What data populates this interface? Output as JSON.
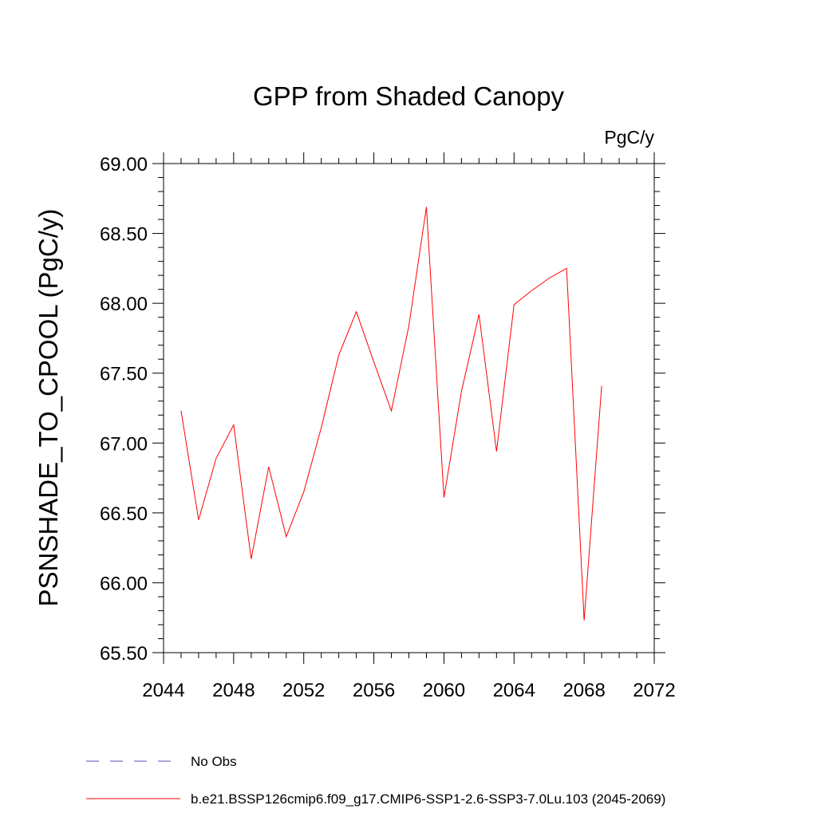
{
  "chart_data": {
    "type": "line",
    "title": "GPP from Shaded Canopy",
    "units": "PgC/y",
    "xlabel": "",
    "ylabel": "PSNSHADE_TO_CPOOL  (PgC/y)",
    "xlim": [
      2044,
      2072
    ],
    "ylim": [
      65.5,
      69.0
    ],
    "x_ticks": [
      "2044",
      "2048",
      "2052",
      "2056",
      "2060",
      "2064",
      "2068",
      "2072"
    ],
    "y_ticks": [
      "65.50",
      "66.00",
      "66.50",
      "67.00",
      "67.50",
      "68.00",
      "68.50",
      "69.00"
    ],
    "grid": false,
    "legend_position": "bottom",
    "series": [
      {
        "name": "b.e21.BSSP126cmip6.f09_g17.CMIP6-SSP1-2.6-SSP3-7.0Lu.103 (2045-2069)",
        "color": "#ff0000",
        "style": "solid",
        "x": [
          2045,
          2046,
          2047,
          2048,
          2049,
          2050,
          2051,
          2052,
          2053,
          2054,
          2055,
          2056,
          2057,
          2058,
          2059,
          2060,
          2061,
          2062,
          2063,
          2064,
          2065,
          2066,
          2067,
          2068,
          2069
        ],
        "y": [
          67.23,
          66.45,
          66.89,
          67.13,
          66.17,
          66.83,
          66.33,
          66.65,
          67.11,
          67.63,
          67.94,
          67.58,
          67.23,
          67.84,
          68.69,
          66.61,
          67.37,
          67.92,
          66.94,
          67.99,
          68.09,
          68.18,
          68.25,
          65.73,
          67.41
        ]
      }
    ],
    "legend": [
      {
        "label": "No Obs",
        "color": "#5050b0",
        "style": "dashed"
      },
      {
        "label": "b.e21.BSSP126cmip6.f09_g17.CMIP6-SSP1-2.6-SSP3-7.0Lu.103 (2045-2069)",
        "color": "#ff0000",
        "style": "solid"
      }
    ]
  }
}
